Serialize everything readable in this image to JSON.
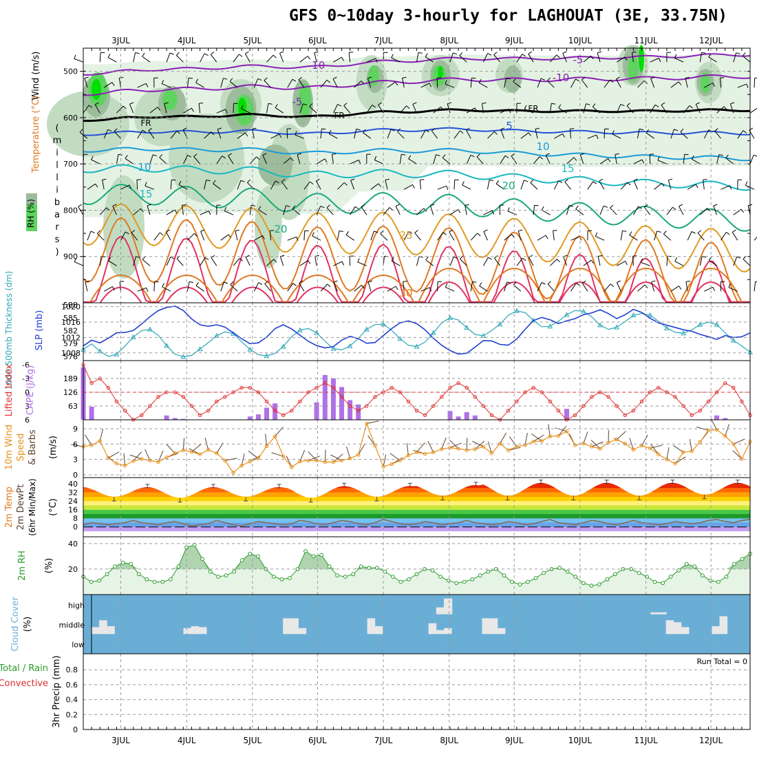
{
  "title": "GFS 0~10day 3-hourly for LAGHOUAT (3E, 33.75N)",
  "colors": {
    "frame": "#000000",
    "grid": "#999999",
    "rh_light": "#e4f2e4",
    "rh_mid": "#c2dcc2",
    "rh_dark": "#9cbc9c",
    "rh_bright": "#5fd35f",
    "rh_vivid": "#00e000",
    "thickness": "#2aa6b7",
    "slp": "#1f3fd0",
    "lifted_index": "#e03030",
    "cape": "#b070e8",
    "wind10": "#e8901a",
    "dewpt": "#8a6a50",
    "rh2m": "#2a9a2a",
    "rh2m_fill": "#e6f4e6",
    "cloud_bg": "#6aaed6",
    "cloud_fill": "#e8e8e8",
    "temp_bands": [
      "#c79ef2",
      "#6aa2e8",
      "#74c2f0",
      "#1c9a2a",
      "#46c846",
      "#c8e838",
      "#fff07a",
      "#ffd200",
      "#ffa200",
      "#ff6a00",
      "#e82a00",
      "#b40000"
    ]
  },
  "chart_data": [
    {
      "panel": "upper-air",
      "type": "contour",
      "xlabels": [
        "3JUL",
        "4JUL",
        "5JUL",
        "6JUL",
        "7JUL",
        "8JUL",
        "9JUL",
        "10JUL",
        "11JUL",
        "12JUL"
      ],
      "ylabel": "(millibars)",
      "ylabel_chars": [
        "(",
        "m",
        "i",
        "l",
        "l",
        "i",
        "b",
        "a",
        "r",
        "s",
        ")"
      ],
      "side_labels": {
        "wind": "Wind (m/s)",
        "temperature": "Temperature (°C)",
        "rh": "RH (%)"
      },
      "yticks": [
        500,
        600,
        700,
        800,
        900
      ],
      "ylim": [
        1000,
        450
      ],
      "isotherms_c": [
        -10,
        -5,
        0,
        5,
        10,
        15,
        20,
        25,
        30
      ],
      "isotherm_labels": [
        {
          "text": "-10",
          "color": "#8a1fb5"
        },
        {
          "text": "-5",
          "color": "#8a1fb5"
        },
        {
          "text": "-5",
          "color": "#8a1fb5"
        },
        {
          "text": "-10",
          "color": "#8a1fb5"
        },
        {
          "text": "FR",
          "color": "#000000"
        },
        {
          "text": "FR",
          "color": "#000000"
        },
        {
          "text": "FR",
          "color": "#000000"
        },
        {
          "text": "5",
          "color": "#2450d8"
        },
        {
          "text": "10",
          "color": "#1a9ad8"
        },
        {
          "text": "10",
          "color": "#1a9ad8"
        },
        {
          "text": "15",
          "color": "#18b8c0"
        },
        {
          "text": "15",
          "color": "#18b8c0"
        },
        {
          "text": "20",
          "color": "#18a878"
        },
        {
          "text": "20",
          "color": "#18a878"
        },
        {
          "text": "25",
          "color": "#e09a20"
        },
        {
          "text": "30",
          "color": "#e07820"
        }
      ],
      "freezing_level_mb": [
        605,
        605,
        600,
        598,
        598,
        598,
        596,
        594,
        595,
        597,
        598,
        596,
        590,
        588,
        588,
        585,
        584,
        584,
        585,
        586,
        586,
        586,
        586,
        586,
        586,
        586,
        585,
        584,
        584,
        584
      ],
      "rh_levels_pct": [
        30,
        50,
        70,
        90
      ]
    },
    {
      "panel": "thickness-slp",
      "type": "line",
      "ylabel_left": "1000-500mb Thickness (dm)",
      "ylabel_right": "SLP (mb)",
      "thickness_ticks": [
        576,
        579,
        582,
        585,
        588
      ],
      "slp_ticks": [
        1008,
        1012,
        1016,
        1020
      ],
      "thickness_dm": [
        577.6,
        578.9,
        577.2,
        576.0,
        576.5,
        578.4,
        580.5,
        582.0,
        582.3,
        580.9,
        578.5,
        576.5,
        575.9,
        576.2,
        577.7,
        579.2,
        580.8,
        581.7,
        581.3,
        579.4,
        577.6,
        576.4,
        576.1,
        576.7,
        578.3,
        580.6,
        582.1,
        582.5,
        581.5,
        579.5,
        577.8,
        577.5,
        578.4,
        580.2,
        582.3,
        583.4,
        583.5,
        582.1,
        580.1,
        578.6,
        578.3,
        579.3,
        581.5,
        583.8,
        585.0,
        584.5,
        582.7,
        581.1,
        580.8,
        582.0,
        583.5,
        585.6,
        586.6,
        586.2,
        584.4,
        582.9,
        583.0,
        584.2,
        585.7,
        586.7,
        586.5,
        585.2,
        583.3,
        582.3,
        582.8,
        584.1,
        585.6,
        586.0,
        585.6,
        584.2,
        582.6,
        581.6,
        581.4,
        582.2,
        583.4,
        584.0,
        583.4,
        581.5,
        579.7,
        578.4,
        577.0
      ],
      "slp_mb": [
        1009.8,
        1011.3,
        1010.6,
        1011.8,
        1013.2,
        1013.3,
        1013.8,
        1015.5,
        1017.4,
        1019.0,
        1019.8,
        1020.1,
        1019.0,
        1016.8,
        1015.3,
        1014.9,
        1015.3,
        1014.7,
        1013.2,
        1011.7,
        1010.4,
        1010.6,
        1012.1,
        1014.3,
        1015.3,
        1014.2,
        1012.6,
        1011.0,
        1009.9,
        1009.3,
        1009.6,
        1011.3,
        1012.3,
        1011.7,
        1010.5,
        1010.7,
        1012.5,
        1014.3,
        1015.8,
        1016.3,
        1015.6,
        1014.0,
        1011.8,
        1010.0,
        1008.6,
        1007.7,
        1007.9,
        1009.5,
        1011.2,
        1011.1,
        1010.2,
        1010.0,
        1011.6,
        1014.1,
        1016.4,
        1017.2,
        1016.6,
        1015.6,
        1016.3,
        1016.9,
        1017.9,
        1018.4,
        1019.2,
        1018.2,
        1016.9,
        1017.9,
        1019.3,
        1018.5,
        1017.0,
        1015.8,
        1015.2,
        1014.6,
        1014.0,
        1013.6,
        1012.8,
        1012.2,
        1011.5,
        1012.5,
        1012.0,
        1012.2,
        1013.2
      ]
    },
    {
      "panel": "li-cape",
      "type": "bar+line",
      "ylabel_left": "Lifted Index",
      "ylabel_right": "CAPE (J/kg)",
      "li_ticks": [
        "-6",
        "-3",
        "0",
        "3",
        "6"
      ],
      "cape_ticks": [
        "189",
        "126",
        "63"
      ],
      "lifted_index": [
        -6,
        -2,
        -3,
        -1,
        2,
        4,
        6,
        5,
        3,
        1,
        0,
        0,
        1,
        3,
        5,
        4,
        2,
        1,
        0,
        -1,
        -1,
        0,
        2,
        4,
        5,
        4,
        2,
        0,
        -1,
        -2,
        -1,
        1,
        3,
        4,
        3,
        1,
        0,
        -1,
        0,
        2,
        4,
        5,
        3,
        1,
        -1,
        -2,
        -1,
        1,
        3,
        5,
        6,
        4,
        2,
        0,
        -1,
        0,
        2,
        4,
        6,
        5,
        3,
        1,
        0,
        1,
        3,
        5,
        4,
        2,
        0,
        -1,
        0,
        1,
        3,
        5,
        4,
        2,
        0,
        -2,
        -1,
        2,
        5
      ],
      "cape_jkg": [
        240,
        60,
        0,
        0,
        0,
        0,
        0,
        0,
        0,
        0,
        20,
        8,
        4,
        0,
        0,
        0,
        0,
        0,
        0,
        0,
        15,
        25,
        55,
        75,
        0,
        0,
        0,
        0,
        80,
        205,
        190,
        150,
        90,
        70,
        0,
        0,
        0,
        0,
        0,
        0,
        0,
        0,
        0,
        0,
        40,
        15,
        35,
        20,
        0,
        0,
        0,
        0,
        0,
        0,
        0,
        0,
        0,
        0,
        50,
        0,
        0,
        0,
        0,
        0,
        0,
        0,
        0,
        0,
        0,
        0,
        0,
        0,
        0,
        0,
        0,
        0,
        20,
        8,
        0,
        0,
        0
      ]
    },
    {
      "panel": "wind10m",
      "type": "line",
      "ylabel": "10m Wind Speed & Barbs (m/s)",
      "ylabel_parts": [
        "10m Wind",
        "Speed",
        "& Barbs"
      ],
      "yunit": "(m/s)",
      "yticks": [
        0,
        3,
        6,
        9
      ],
      "speed_ms": [
        5.5,
        5.8,
        6.6,
        3.3,
        2.2,
        1.8,
        2.7,
        3.1,
        2.8,
        2.5,
        3.4,
        4.2,
        4.8,
        4.5,
        4.0,
        4.9,
        4.2,
        2.8,
        0.4,
        1.8,
        2.6,
        3.2,
        5.6,
        7.5,
        3.6,
        1.5,
        2.6,
        2.8,
        2.8,
        2.5,
        2.5,
        2.8,
        3.2,
        3.9,
        10.0,
        5.7,
        1.6,
        2.1,
        2.8,
        3.8,
        4.4,
        4.1,
        4.4,
        5.0,
        5.3,
        5.1,
        4.8,
        5.0,
        5.5,
        4.2,
        6.1,
        4.8,
        5.5,
        5.8,
        6.5,
        6.6,
        7.5,
        7.6,
        8.5,
        5.8,
        6.1,
        5.5,
        5.1,
        6.3,
        6.9,
        6.1,
        4.9,
        5.7,
        5.2,
        4.0,
        3.0,
        2.2,
        4.4,
        4.6,
        6.4,
        8.7,
        8.8,
        7.6,
        6.0,
        3.1,
        6.5
      ]
    },
    {
      "panel": "temp2m",
      "type": "area",
      "ylabel": "2m Temp 2m DewPt (6hr Min/Max) (°C)",
      "ylabel_parts": [
        "2m Temp",
        "2m DewPt",
        "(6hr Min/Max)"
      ],
      "yunit": "(°C)",
      "yticks": [
        0,
        8,
        16,
        24,
        32,
        40
      ],
      "temp_daily_min_c": [
        28,
        27,
        28,
        27,
        28,
        29,
        29,
        29,
        29,
        30
      ],
      "temp_daily_max_c": [
        37,
        37,
        37,
        38,
        38,
        39,
        41,
        41,
        41,
        41
      ],
      "dewpt_c": [
        2,
        4,
        3,
        2,
        3,
        4,
        6,
        4,
        3,
        2,
        4,
        5,
        3,
        1,
        2,
        3,
        6,
        4,
        2,
        1,
        3,
        5,
        4,
        3,
        2,
        3,
        6,
        5,
        3,
        2,
        4,
        6,
        5,
        3,
        2,
        4,
        7,
        5,
        3,
        2,
        3,
        5,
        4,
        2,
        3,
        4,
        6,
        4,
        3,
        2,
        3,
        5,
        4,
        2,
        3,
        5,
        7,
        4,
        3,
        2,
        4,
        6,
        5,
        3,
        2,
        4,
        6,
        4,
        3,
        2,
        3,
        5,
        4,
        3,
        4,
        6,
        7,
        5,
        4,
        6,
        7
      ]
    },
    {
      "panel": "rh2m",
      "type": "line",
      "ylabel": "2m RH",
      "yunit": "(%)",
      "yticks": [
        20,
        40
      ],
      "rh_pct": [
        14,
        10,
        11,
        16,
        22,
        25,
        24,
        16,
        12,
        10,
        10,
        12,
        22,
        37,
        39,
        28,
        18,
        14,
        15,
        18,
        27,
        32,
        30,
        20,
        14,
        12,
        13,
        20,
        34,
        30,
        31,
        22,
        15,
        14,
        16,
        22,
        21,
        21,
        18,
        14,
        10,
        12,
        16,
        20,
        19,
        14,
        11,
        9,
        10,
        12,
        15,
        18,
        20,
        15,
        10,
        8,
        10,
        13,
        17,
        20,
        21,
        18,
        14,
        9,
        7,
        8,
        12,
        16,
        20,
        20,
        17,
        14,
        10,
        9,
        14,
        19,
        24,
        22,
        15,
        11,
        10,
        14,
        24,
        28,
        32
      ]
    },
    {
      "panel": "cloud",
      "type": "heatmap",
      "ylabel": "Cloud Cover",
      "yunit": "(%)",
      "levels": [
        "high",
        "middle",
        "low"
      ],
      "high_pct": [
        0,
        0,
        0,
        0,
        0,
        0,
        0,
        0,
        0,
        0,
        0,
        0,
        0,
        0,
        0,
        0,
        0,
        0,
        0,
        0,
        0,
        0,
        0,
        0,
        0,
        0,
        0,
        0,
        0,
        0,
        0,
        0,
        0,
        0,
        0,
        0,
        0,
        0,
        0,
        0,
        0,
        0,
        0,
        0,
        0,
        35,
        80,
        0,
        0,
        0,
        0,
        0,
        0,
        0,
        0,
        0,
        0,
        0,
        0,
        0,
        0,
        0,
        0,
        0,
        0,
        0,
        0,
        0,
        0,
        0,
        0,
        0,
        0,
        10,
        10,
        0,
        0,
        0,
        0,
        0,
        0
      ],
      "middle_pct": [
        35,
        70,
        40,
        0,
        0,
        0,
        0,
        0,
        0,
        0,
        0,
        0,
        30,
        40,
        35,
        0,
        0,
        0,
        0,
        0,
        0,
        0,
        0,
        0,
        0,
        80,
        80,
        30,
        0,
        0,
        0,
        0,
        0,
        0,
        0,
        0,
        80,
        40,
        0,
        0,
        0,
        0,
        0,
        0,
        55,
        20,
        30,
        0,
        0,
        0,
        0,
        80,
        80,
        30,
        0,
        0,
        0,
        0,
        0,
        0,
        0,
        0,
        0,
        0,
        0,
        0,
        0,
        0,
        0,
        0,
        0,
        0,
        0,
        0,
        0,
        70,
        60,
        35,
        0,
        0,
        0,
        40,
        90,
        0,
        0,
        0
      ]
    },
    {
      "panel": "precip",
      "type": "bar",
      "ylabel": "3hr Precip (mm)",
      "legend_left": [
        "Total / Rain",
        "Convective"
      ],
      "annotation": "Run Total = 0",
      "yticks": [
        "0",
        "0.2",
        "0.4",
        "0.6",
        "0.8"
      ],
      "ylim": [
        0,
        1
      ],
      "values_mm": []
    }
  ]
}
